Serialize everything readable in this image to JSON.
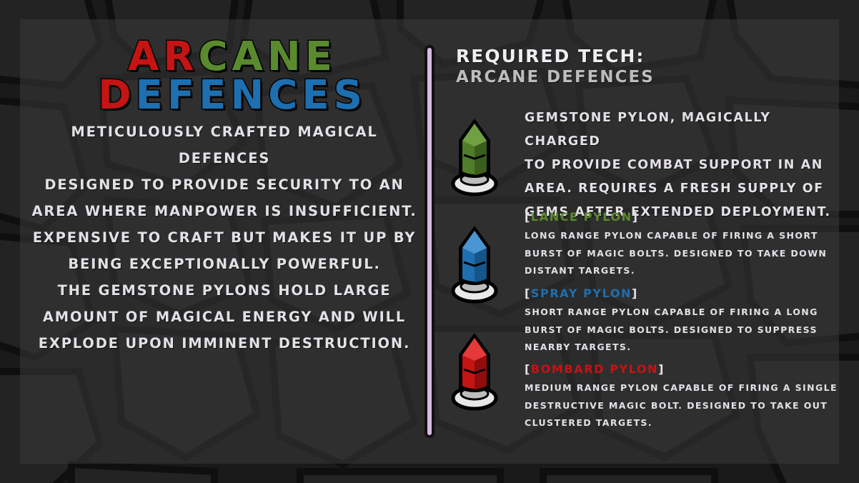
{
  "title": {
    "line1": [
      "A",
      "R",
      "C",
      "A",
      "N",
      "E"
    ],
    "line1_colors": [
      "red",
      "red",
      "green",
      "green",
      "green",
      "green"
    ],
    "line2": [
      "D",
      "E",
      "F",
      "E",
      "N",
      "C",
      "E",
      "S"
    ],
    "line2_colors": [
      "red",
      "blue",
      "blue",
      "blue",
      "blue",
      "blue",
      "blue",
      "blue"
    ]
  },
  "description": {
    "paragraph1": [
      "Meticulously crafted magical defences",
      "designed to provide security to an",
      "area where manpower is insufficient.",
      "Expensive to craft but makes it up by",
      "being exceptionally powerful."
    ],
    "paragraph2": [
      "The gemstone pylons hold large",
      "amount of magical energy and will",
      "explode upon imminent destruction."
    ]
  },
  "required_tech": {
    "heading": "Required Tech:",
    "value": "Arcane Defences"
  },
  "pylon_description": [
    "Gemstone pylon, magically charged",
    "to provide combat support in an",
    "area. Requires a fresh supply of",
    "gems after extended deployment."
  ],
  "variants": [
    {
      "name": "Lance Pylon",
      "lines": [
        "Long range pylon capable of firing a short",
        "burst of magic bolts. Designed to take down",
        "distant targets."
      ]
    },
    {
      "name": "Spray Pylon",
      "lines": [
        "Short range pylon capable of firing a long",
        "burst of magic bolts. Designed to suppress",
        "nearby targets."
      ]
    },
    {
      "name": "Bombard Pylon",
      "lines": [
        "Medium range pylon capable of firing a single",
        "destructive magic bolt. Designed to take out",
        "clustered targets."
      ]
    }
  ],
  "brackets": {
    "open": "[",
    "close": "]"
  },
  "colors": {
    "red": "#c41414",
    "green": "#5a8a2e",
    "blue": "#1e6fb0",
    "divider": "#d6bde3",
    "text": "#e3e0e6"
  },
  "icons": {
    "lance": "green-gemstone-pylon-icon",
    "spray": "blue-gemstone-pylon-icon",
    "bombard": "red-gemstone-pylon-icon"
  }
}
